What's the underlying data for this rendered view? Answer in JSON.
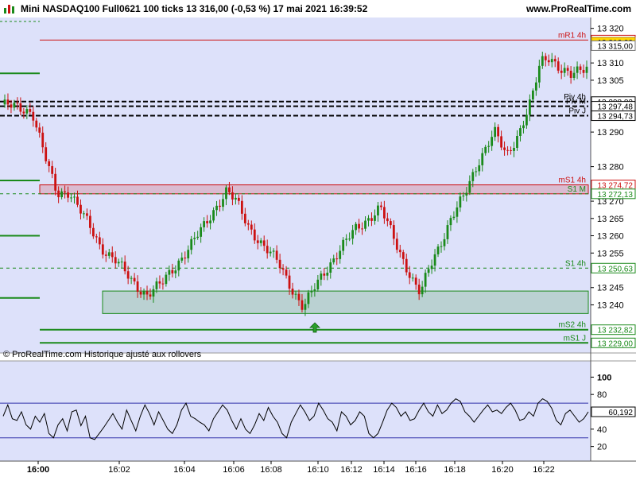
{
  "header": {
    "instrument": "Mini NASDAQ100 Full0621 100 ticks 13 316,00 (-0,53 %) 17 mai 2021 16:39:52",
    "site": "www.ProRealTime.com"
  },
  "footer_note": "© ProRealTime.com Historique ajusté aux rollovers",
  "colors": {
    "background": "#dde1fa",
    "up": "#1a8a1a",
    "down": "#cc1111",
    "support": "#1a8a1a",
    "resistance": "#cc1111",
    "pivot": "#000000",
    "highlight_price": "#ffd700"
  },
  "chart_data": [
    {
      "type": "candlestick",
      "ylim": [
        13227,
        13322
      ],
      "y_ticks": [
        13320,
        13315,
        13310,
        13305,
        13290,
        13280,
        13270,
        13265,
        13260,
        13255,
        13245,
        13240
      ],
      "y_tick_labels": [
        "13 320",
        "13 315",
        "13 310",
        "13 305",
        "13 290",
        "13 280",
        "13 270",
        "13 265",
        "13 260",
        "13 255",
        "13 245",
        "13 240"
      ],
      "x_labels": [
        "16:00",
        "16:02",
        "16:04",
        "16:06",
        "16:08",
        "16:10",
        "16:12",
        "16:14",
        "16:16",
        "16:18",
        "16:20",
        "16:22"
      ],
      "price_path": [
        [
          0,
          13298
        ],
        [
          5,
          13297
        ],
        [
          10,
          13296
        ],
        [
          15,
          13280
        ],
        [
          18,
          13272
        ],
        [
          22,
          13273
        ],
        [
          27,
          13265
        ],
        [
          32,
          13257
        ],
        [
          37,
          13253
        ],
        [
          42,
          13247
        ],
        [
          47,
          13243
        ],
        [
          52,
          13246
        ],
        [
          57,
          13252
        ],
        [
          62,
          13258
        ],
        [
          66,
          13263
        ],
        [
          70,
          13269
        ],
        [
          73,
          13273
        ],
        [
          76,
          13270
        ],
        [
          80,
          13263
        ],
        [
          85,
          13257
        ],
        [
          90,
          13252
        ],
        [
          93,
          13247
        ],
        [
          96,
          13242
        ],
        [
          98,
          13239
        ],
        [
          101,
          13244
        ],
        [
          105,
          13250
        ],
        [
          110,
          13256
        ],
        [
          115,
          13262
        ],
        [
          119,
          13265
        ],
        [
          123,
          13268
        ],
        [
          127,
          13260
        ],
        [
          131,
          13252
        ],
        [
          134,
          13246
        ],
        [
          136,
          13243
        ],
        [
          139,
          13251
        ],
        [
          143,
          13259
        ],
        [
          146,
          13265
        ],
        [
          150,
          13271
        ],
        [
          155,
          13282
        ],
        [
          160,
          13290
        ],
        [
          164,
          13283
        ],
        [
          168,
          13290
        ],
        [
          172,
          13299
        ],
        [
          175,
          13310
        ],
        [
          178,
          13312
        ],
        [
          182,
          13308
        ],
        [
          185,
          13306
        ],
        [
          190,
          13309
        ]
      ],
      "levels": [
        {
          "label": "mR1 4h",
          "value": 13316.62,
          "badge": "13 316,62",
          "style": "solid",
          "color": "#cc1111"
        },
        {
          "label": "",
          "value": 13316.0,
          "badge": "13 316,00",
          "style": "current",
          "color": "#ffd700"
        },
        {
          "label": "",
          "value": 13315.0,
          "badge": "13 315,00",
          "style": "tick",
          "color": "#ffffff"
        },
        {
          "label": "Piv 4h",
          "value": 13298.82,
          "badge": "13 298,82",
          "style": "dashed",
          "color": "#000000"
        },
        {
          "label": "Piv M",
          "value": 13297.48,
          "badge": "13 297,48",
          "style": "dashed",
          "color": "#000000"
        },
        {
          "label": "Piv J",
          "value": 13294.73,
          "badge": "13 294,73",
          "style": "dashed",
          "color": "#000000"
        },
        {
          "label": "mS1 4h",
          "value": 13274.72,
          "badge": "13 274,72",
          "style": "solid",
          "color": "#cc1111"
        },
        {
          "label": "S1 M",
          "value": 13272.13,
          "badge": "13 272,13",
          "style": "dotted",
          "color": "#1a8a1a"
        },
        {
          "label": "S1 4h",
          "value": 13250.63,
          "badge": "13 250,63",
          "style": "dotted",
          "color": "#1a8a1a"
        },
        {
          "label": "mS2 4h",
          "value": 13232.82,
          "badge": "13 232,82",
          "style": "solid",
          "color": "#1a8a1a"
        },
        {
          "label": "mS1 J",
          "value": 13229.0,
          "badge": "13 229,00",
          "style": "solid",
          "color": "#1a8a1a"
        }
      ],
      "zones": [
        {
          "from": 13272.13,
          "to": 13274.72,
          "color": "#cc1111",
          "kind": "resistance"
        },
        {
          "from": 13237.5,
          "to": 13244.0,
          "color": "#1a8a1a",
          "kind": "support"
        }
      ],
      "left_markers": [
        13307,
        13276,
        13260,
        13242
      ]
    },
    {
      "type": "line",
      "name": "oscillator",
      "ylim": [
        5,
        115
      ],
      "y_ticks": [
        100,
        80,
        40,
        20
      ],
      "y_tick_labels": [
        "100",
        "80",
        "40",
        "20"
      ],
      "overbought": 70,
      "oversold": 30,
      "last_value_label": "60,192",
      "values": [
        55,
        68,
        52,
        50,
        60,
        45,
        40,
        55,
        48,
        58,
        35,
        30,
        45,
        52,
        38,
        60,
        62,
        44,
        55,
        30,
        28,
        35,
        42,
        50,
        58,
        48,
        40,
        62,
        50,
        38,
        55,
        68,
        58,
        45,
        60,
        50,
        40,
        35,
        45,
        62,
        70,
        55,
        52,
        48,
        45,
        38,
        52,
        60,
        68,
        62,
        50,
        40,
        52,
        40,
        35,
        45,
        58,
        50,
        65,
        55,
        48,
        35,
        30,
        48,
        58,
        68,
        60,
        50,
        55,
        70,
        62,
        52,
        48,
        38,
        60,
        55,
        45,
        50,
        60,
        55,
        35,
        30,
        35,
        48,
        62,
        70,
        65,
        55,
        60,
        50,
        52,
        62,
        70,
        60,
        55,
        68,
        58,
        62,
        70,
        75,
        72,
        60,
        55,
        48,
        55,
        62,
        68,
        60,
        62,
        58,
        65,
        70,
        62,
        50,
        52,
        60,
        55,
        70,
        75,
        72,
        64,
        50,
        45,
        58,
        62,
        55,
        48,
        52,
        60
      ]
    }
  ]
}
